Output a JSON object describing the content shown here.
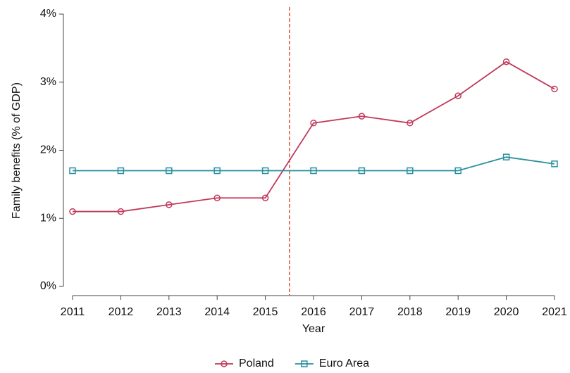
{
  "chart_data": {
    "type": "line",
    "y_label": "Family benefits (% of GDP)",
    "x_label": "Year",
    "x": [
      2011,
      2012,
      2013,
      2014,
      2015,
      2016,
      2017,
      2018,
      2019,
      2020,
      2021
    ],
    "series": [
      {
        "name": "Poland",
        "color": "#c0395a",
        "marker": "circle",
        "values": [
          1.1,
          1.1,
          1.2,
          1.3,
          1.3,
          2.4,
          2.5,
          2.4,
          2.8,
          3.3,
          2.9
        ]
      },
      {
        "name": "Euro Area",
        "color": "#2a8f9e",
        "marker": "square",
        "values": [
          1.7,
          1.7,
          1.7,
          1.7,
          1.7,
          1.7,
          1.7,
          1.7,
          1.7,
          1.9,
          1.8
        ]
      }
    ],
    "xlim": [
      2011,
      2021
    ],
    "xticks": [
      2011,
      2012,
      2013,
      2014,
      2015,
      2016,
      2017,
      2018,
      2019,
      2020,
      2021
    ],
    "ylim": [
      0,
      4
    ],
    "yticks": [
      {
        "value": 0,
        "label": "0%"
      },
      {
        "value": 1,
        "label": "1%"
      },
      {
        "value": 2,
        "label": "2%"
      },
      {
        "value": 3,
        "label": "3%"
      },
      {
        "value": 4,
        "label": "4%"
      }
    ],
    "vline": {
      "x": 2015.5,
      "color": "#e0533a"
    },
    "grid": false,
    "legend": "bottom"
  }
}
